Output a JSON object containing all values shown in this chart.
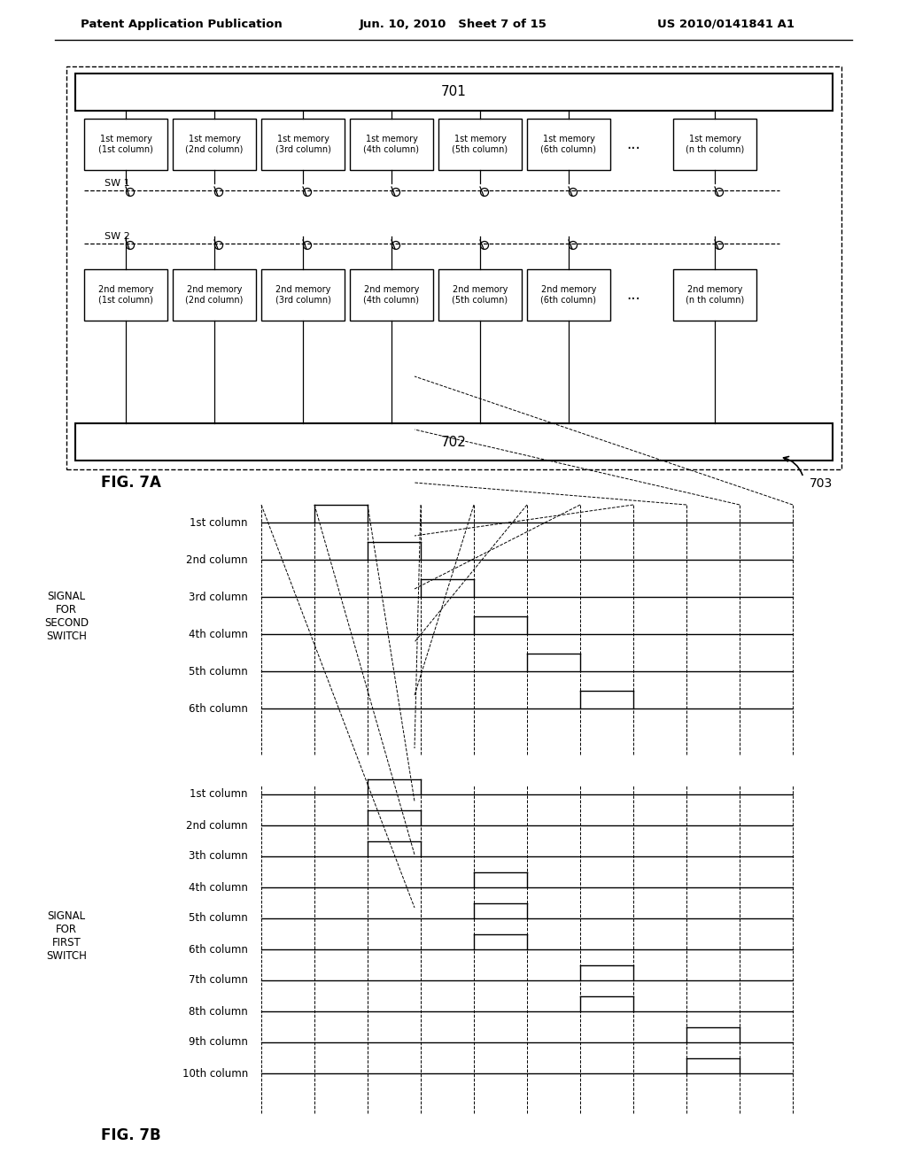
{
  "bg_color": "#ffffff",
  "header_text": "Patent Application Publication",
  "header_date": "Jun. 10, 2010   Sheet 7 of 15",
  "header_patent": "US 2010/0141841 A1",
  "fig7a_label": "FIG. 7A",
  "fig7b_label": "FIG. 7B",
  "label_701": "701",
  "label_702": "702",
  "label_703": "703",
  "label_sw1": "SW 1",
  "label_sw2": "SW 2",
  "mem1_labels": [
    "1st memory\n(1st column)",
    "1st memory\n(2nd column)",
    "1st memory\n(3rd column)",
    "1st memory\n(4th column)",
    "1st memory\n(5th column)",
    "1st memory\n(6th column)",
    "...",
    "1st memory\n(n th column)"
  ],
  "mem2_labels": [
    "2nd memory\n(1st column)",
    "2nd memory\n(2nd column)",
    "2nd memory\n(3rd column)",
    "2nd memory\n(4th column)",
    "2nd memory\n(5th column)",
    "2nd memory\n(6th column)",
    "...",
    "2nd memory\n(n th column)"
  ],
  "second_switch_label": "SIGNAL\nFOR\nSECOND\nSWITCH",
  "first_switch_label": "SIGNAL\nFOR\nFIRST\nSWITCH",
  "second_switch_cols": [
    "1st column",
    "2nd column",
    "3rd column",
    "4th column",
    "5th column",
    "6th column"
  ],
  "first_switch_cols": [
    "1st column",
    "2nd column",
    "3th column",
    "4th column",
    "5th column",
    "6th column",
    "7th column",
    "8th column",
    "9th column",
    "10th column"
  ],
  "num_time_ticks": 11,
  "second_switch_pulses": [
    {
      "rise": 1,
      "fall": 2
    },
    {
      "rise": 2,
      "fall": 3
    },
    {
      "rise": 3,
      "fall": 4
    },
    {
      "rise": 4,
      "fall": 5
    },
    {
      "rise": 5,
      "fall": 6
    },
    {
      "rise": 6,
      "fall": 7
    }
  ],
  "first_switch_pulses": [
    {
      "rise": 2,
      "fall": 3
    },
    {
      "rise": 2,
      "fall": 3
    },
    {
      "rise": 2,
      "fall": 3
    },
    {
      "rise": 4,
      "fall": 5
    },
    {
      "rise": 4,
      "fall": 5
    },
    {
      "rise": 4,
      "fall": 5
    },
    {
      "rise": 6,
      "fall": 7
    },
    {
      "rise": 6,
      "fall": 7
    },
    {
      "rise": 8,
      "fall": 9
    },
    {
      "rise": 8,
      "fall": 9
    }
  ]
}
